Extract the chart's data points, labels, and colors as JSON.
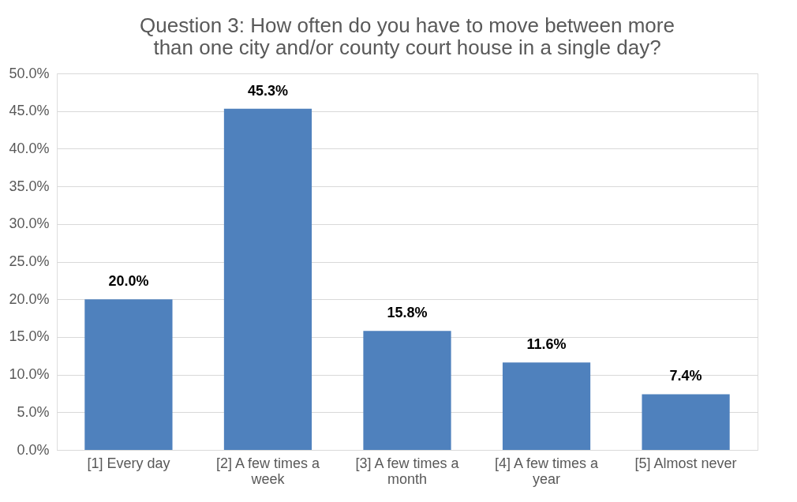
{
  "chart_data": {
    "type": "bar",
    "title": "Question 3: How often do you have to move between more than one city and/or county court house in a single day?",
    "categories": [
      "[1] Every day",
      "[2] A few times a week",
      "[3] A few times a month",
      "[4] A few times a year",
      "[5] Almost never"
    ],
    "values": [
      20.0,
      45.3,
      15.8,
      11.6,
      7.4
    ],
    "value_labels": [
      "20.0%",
      "45.3%",
      "15.8%",
      "11.6%",
      "7.4%"
    ],
    "color": "#4f81bd",
    "ylim": [
      0,
      50
    ],
    "yticks": [
      {
        "value": 0,
        "label": "0.0%"
      },
      {
        "value": 5,
        "label": "5.0%"
      },
      {
        "value": 10,
        "label": "10.0%"
      },
      {
        "value": 15,
        "label": "15.0%"
      },
      {
        "value": 20,
        "label": "20.0%"
      },
      {
        "value": 25,
        "label": "25.0%"
      },
      {
        "value": 30,
        "label": "30.0%"
      },
      {
        "value": 35,
        "label": "35.0%"
      },
      {
        "value": 40,
        "label": "40.0%"
      },
      {
        "value": 45,
        "label": "45.0%"
      },
      {
        "value": 50,
        "label": "50.0%"
      }
    ],
    "grid": "y"
  }
}
